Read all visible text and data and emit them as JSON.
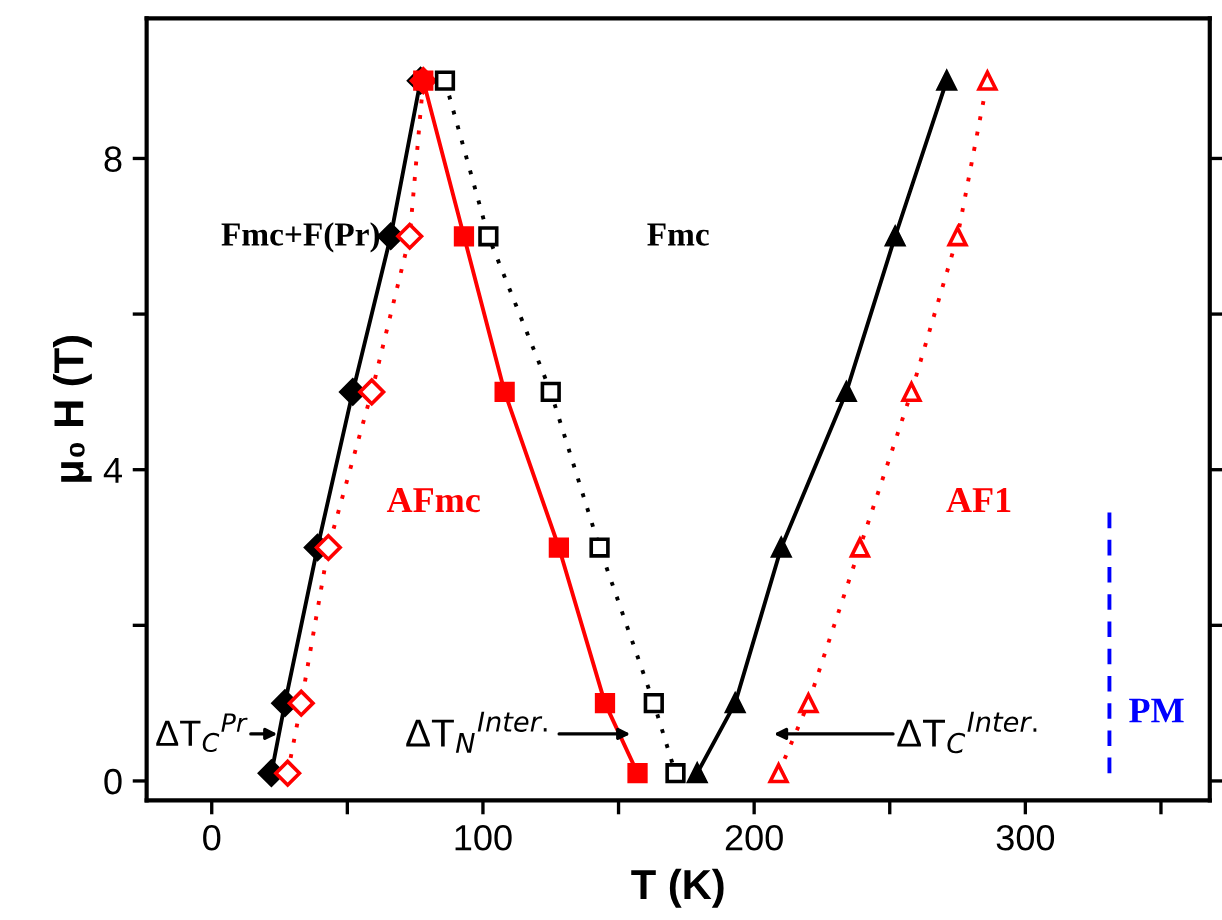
{
  "chart_data": {
    "type": "line",
    "xlabel": "T (K)",
    "ylabel": "μ₀ H (T)",
    "xlim": [
      -24,
      368
    ],
    "ylim": [
      -0.25,
      9.8
    ],
    "xticks": [
      0,
      {
        "value": 50,
        "label": null
      },
      100,
      {
        "value": 150,
        "label": null
      },
      200,
      {
        "value": 250,
        "label": null
      },
      300,
      {
        "value": 350,
        "label": null
      }
    ],
    "yticks": [
      0,
      {
        "value": 2,
        "label": null
      },
      4,
      {
        "value": 6,
        "label": null
      },
      8
    ],
    "grid": false,
    "series": [
      {
        "color": "#000000",
        "marker": "diamond",
        "line_style": "solid",
        "x": [
          22,
          27,
          39,
          52,
          66,
          77
        ],
        "values": [
          0.1,
          1,
          3,
          5,
          7,
          9
        ]
      },
      {
        "color": "#ff0000",
        "marker": "diamond_open",
        "line_style": "dotted",
        "x": [
          28,
          33,
          43,
          59,
          73,
          78
        ],
        "values": [
          0.1,
          1,
          3,
          5,
          7,
          9
        ]
      },
      {
        "color": "#ff0000",
        "marker": "square",
        "line_style": "solid",
        "x": [
          78,
          93,
          108,
          128,
          145,
          157
        ],
        "values": [
          9,
          7,
          5,
          3,
          1,
          0.1
        ]
      },
      {
        "color": "#000000",
        "marker": "square_open",
        "line_style": "dotted",
        "x": [
          86,
          102,
          125,
          143,
          163,
          171
        ],
        "values": [
          9,
          7,
          5,
          3,
          1,
          0.1
        ]
      },
      {
        "color": "#000000",
        "marker": "triangle",
        "line_style": "solid",
        "x": [
          179,
          193,
          210,
          234,
          252,
          271
        ],
        "values": [
          0.1,
          1,
          3,
          5,
          7,
          9
        ]
      },
      {
        "color": "#ff0000",
        "marker": "triangle_open",
        "line_style": "dotted",
        "x": [
          209,
          220,
          239,
          258,
          275,
          286
        ],
        "values": [
          0.1,
          1,
          3,
          5,
          7,
          9
        ]
      },
      {
        "color": "#0000ff",
        "marker": "none",
        "line_style": "dashed",
        "x": [
          331,
          331
        ],
        "values": [
          0.1,
          3.5
        ]
      }
    ],
    "annotations": [
      "Fmc+F(Pr)",
      "Fmc",
      "AFmc",
      "AF1",
      "PM",
      "ΔT$_{C}$$^{Pr}$",
      "ΔT$_{N}$$^{Inter.}$",
      "ΔT$_{C}$$^{Inter.}$"
    ]
  }
}
